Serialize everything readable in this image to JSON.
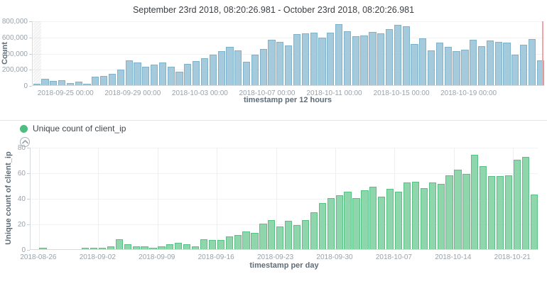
{
  "header": {
    "title": "September 23rd 2018, 08:20:26.981 - October 23rd 2018, 08:20:26.981"
  },
  "legend": {
    "label": "Unique count of client_ip",
    "dot_color": "#4dbe80",
    "collapse_icon": "chevron-up-icon"
  },
  "chart_data": [
    {
      "type": "bar",
      "name": "count-per-12-hours",
      "ylabel": "Count",
      "xlabel": "timestamp per 12 hours",
      "ylim": [
        0,
        800000
      ],
      "yticks": [
        "800,000",
        "600,000",
        "400,000",
        "200,000",
        "0"
      ],
      "grid": "horizontal",
      "bar_color": "#a5cadb",
      "bar_border_color": "#7eb3cb",
      "now_line_color": "#f2a4a6",
      "partial_first_bucket": true,
      "x": [
        "2018-09-23 00:00",
        "2018-09-23 12:00",
        "2018-09-24 00:00",
        "2018-09-24 12:00",
        "2018-09-25 00:00",
        "2018-09-25 12:00",
        "2018-09-26 00:00",
        "2018-09-26 12:00",
        "2018-09-27 00:00",
        "2018-09-27 12:00",
        "2018-09-28 00:00",
        "2018-09-28 12:00",
        "2018-09-29 00:00",
        "2018-09-29 12:00",
        "2018-09-30 00:00",
        "2018-09-30 12:00",
        "2018-10-01 00:00",
        "2018-10-01 12:00",
        "2018-10-02 00:00",
        "2018-10-02 12:00",
        "2018-10-03 00:00",
        "2018-10-03 12:00",
        "2018-10-04 00:00",
        "2018-10-04 12:00",
        "2018-10-05 00:00",
        "2018-10-05 12:00",
        "2018-10-06 00:00",
        "2018-10-06 12:00",
        "2018-10-07 00:00",
        "2018-10-07 12:00",
        "2018-10-08 00:00",
        "2018-10-08 12:00",
        "2018-10-09 00:00",
        "2018-10-09 12:00",
        "2018-10-10 00:00",
        "2018-10-10 12:00",
        "2018-10-11 00:00",
        "2018-10-11 12:00",
        "2018-10-12 00:00",
        "2018-10-12 12:00",
        "2018-10-13 00:00",
        "2018-10-13 12:00",
        "2018-10-14 00:00",
        "2018-10-14 12:00",
        "2018-10-15 00:00",
        "2018-10-15 12:00",
        "2018-10-16 00:00",
        "2018-10-16 12:00",
        "2018-10-17 00:00",
        "2018-10-17 12:00",
        "2018-10-18 00:00",
        "2018-10-18 12:00",
        "2018-10-19 00:00",
        "2018-10-19 12:00",
        "2018-10-20 00:00",
        "2018-10-20 12:00",
        "2018-10-21 00:00",
        "2018-10-21 12:00",
        "2018-10-22 00:00",
        "2018-10-22 12:00",
        "2018-10-23 00:00"
      ],
      "values": [
        20000,
        75000,
        55000,
        62000,
        30000,
        45000,
        22000,
        110000,
        115000,
        140000,
        195000,
        305000,
        280000,
        230000,
        255000,
        280000,
        225000,
        165000,
        260000,
        295000,
        330000,
        380000,
        420000,
        475000,
        435000,
        290000,
        375000,
        450000,
        565000,
        535000,
        490000,
        635000,
        640000,
        650000,
        585000,
        650000,
        755000,
        665000,
        610000,
        615000,
        660000,
        645000,
        695000,
        745000,
        730000,
        510000,
        580000,
        435000,
        530000,
        475000,
        425000,
        440000,
        565000,
        485000,
        550000,
        540000,
        530000,
        375000,
        500000,
        570000,
        305000
      ],
      "xticks": [
        {
          "label": "2018-09-25 00:00",
          "index": 4
        },
        {
          "label": "2018-09-29 00:00",
          "index": 12
        },
        {
          "label": "2018-10-03 00:00",
          "index": 20
        },
        {
          "label": "2018-10-07 00:00",
          "index": 28
        },
        {
          "label": "2018-10-11 00:00",
          "index": 36
        },
        {
          "label": "2018-10-15 00:00",
          "index": 44
        },
        {
          "label": "2018-10-19 00:00",
          "index": 52
        }
      ]
    },
    {
      "type": "bar",
      "name": "unique-count-of-client_ip-per-day",
      "ylabel": "Unique count of client_ip",
      "xlabel": "timestamp per day",
      "ylim": [
        0,
        80
      ],
      "yticks": [
        "80",
        "60",
        "40",
        "20",
        "0"
      ],
      "grid": "both",
      "bar_color": "#8fd6ac",
      "bar_border_color": "#58c184",
      "x": [
        "2018-08-25",
        "2018-08-26",
        "2018-08-27",
        "2018-08-28",
        "2018-08-29",
        "2018-08-30",
        "2018-08-31",
        "2018-09-01",
        "2018-09-02",
        "2018-09-03",
        "2018-09-04",
        "2018-09-05",
        "2018-09-06",
        "2018-09-07",
        "2018-09-08",
        "2018-09-09",
        "2018-09-10",
        "2018-09-11",
        "2018-09-12",
        "2018-09-13",
        "2018-09-14",
        "2018-09-15",
        "2018-09-16",
        "2018-09-17",
        "2018-09-18",
        "2018-09-19",
        "2018-09-20",
        "2018-09-21",
        "2018-09-22",
        "2018-09-23",
        "2018-09-24",
        "2018-09-25",
        "2018-09-26",
        "2018-09-27",
        "2018-09-28",
        "2018-09-29",
        "2018-09-30",
        "2018-10-01",
        "2018-10-02",
        "2018-10-03",
        "2018-10-04",
        "2018-10-05",
        "2018-10-06",
        "2018-10-07",
        "2018-10-08",
        "2018-10-09",
        "2018-10-10",
        "2018-10-11",
        "2018-10-12",
        "2018-10-13",
        "2018-10-14",
        "2018-10-15",
        "2018-10-16",
        "2018-10-17",
        "2018-10-18",
        "2018-10-19",
        "2018-10-20",
        "2018-10-21",
        "2018-10-22",
        "2018-10-23"
      ],
      "values": [
        0,
        1,
        0,
        0,
        0,
        0,
        1,
        1,
        1,
        2,
        8,
        4,
        2,
        2,
        1,
        2,
        4,
        5,
        4,
        2,
        8,
        7,
        7,
        10,
        11,
        14,
        13,
        20,
        23,
        18,
        22,
        19,
        23,
        29,
        36,
        40,
        42,
        45,
        40,
        46,
        49,
        41,
        47,
        45,
        52,
        53,
        48,
        52,
        51,
        58,
        62,
        59,
        74,
        65,
        57,
        57,
        58,
        70,
        72,
        43
      ],
      "xticks": [
        {
          "label": "2018-08-26",
          "index": 1
        },
        {
          "label": "2018-09-02",
          "index": 8
        },
        {
          "label": "2018-09-09",
          "index": 15
        },
        {
          "label": "2018-09-16",
          "index": 22
        },
        {
          "label": "2018-09-23",
          "index": 29
        },
        {
          "label": "2018-09-30",
          "index": 36
        },
        {
          "label": "2018-10-07",
          "index": 43
        },
        {
          "label": "2018-10-14",
          "index": 50
        },
        {
          "label": "2018-10-21",
          "index": 57
        }
      ]
    }
  ]
}
